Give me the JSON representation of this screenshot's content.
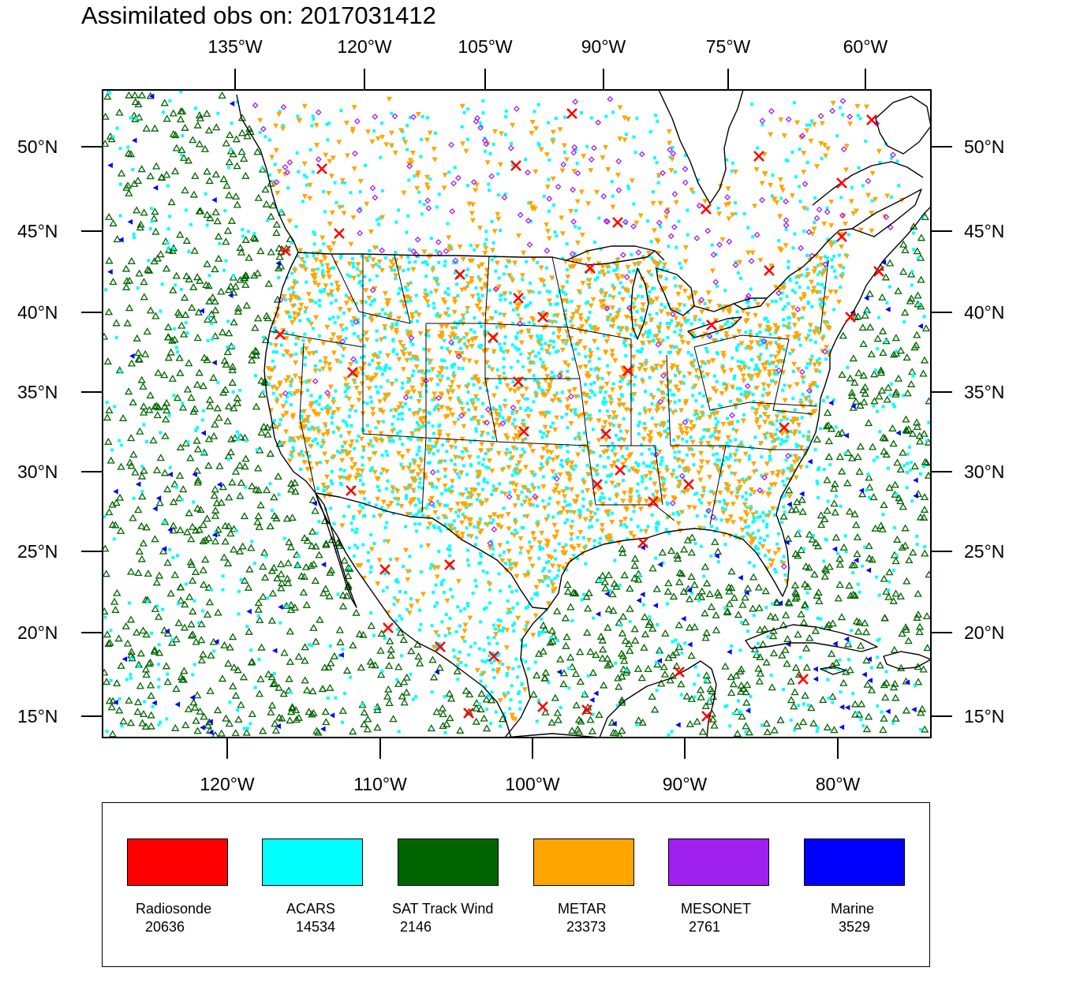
{
  "title": "Assimilated obs on: 2017031412",
  "top_axis_labels": [
    "135°W",
    "120°W",
    "105°W",
    "90°W",
    "75°W",
    "60°W"
  ],
  "bottom_axis_labels": [
    "120°W",
    "110°W",
    "100°W",
    "90°W",
    "80°W"
  ],
  "left_axis_labels": [
    "50°N",
    "45°N",
    "40°N",
    "35°N",
    "30°N",
    "25°N",
    "20°N",
    "15°N"
  ],
  "right_axis_labels": [
    "50°N",
    "45°N",
    "40°N",
    "35°N",
    "30°N",
    "25°N",
    "20°N",
    "15°N"
  ],
  "colors": {
    "radiosonde": "#ff0000",
    "acars": "#00ffff",
    "sat_track_wind": "#006400",
    "metar": "#ffa500",
    "mesonet": "#a020f0",
    "marine": "#0000ff",
    "coastline": "#000000"
  },
  "legend": [
    {
      "label": "Radiosonde",
      "count": "20636",
      "color": "#ff0000"
    },
    {
      "label": "ACARS",
      "count": "14534",
      "color": "#00ffff"
    },
    {
      "label": "SAT Track Wind",
      "count": "2146",
      "color": "#006400"
    },
    {
      "label": "METAR",
      "count": "23373",
      "color": "#ffa500"
    },
    {
      "label": "MESONET",
      "count": "2761",
      "color": "#a020f0"
    },
    {
      "label": "Marine",
      "count": "3529",
      "color": "#0000ff"
    }
  ]
}
